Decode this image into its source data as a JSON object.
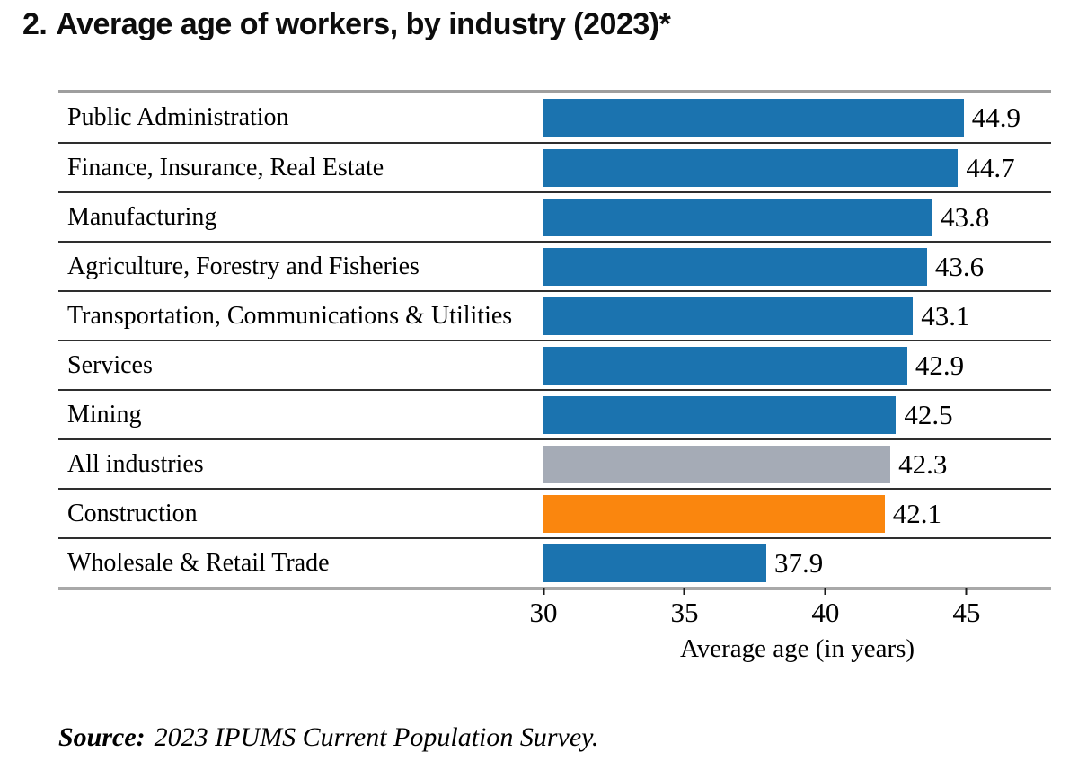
{
  "title": {
    "number": "2.",
    "text": "Average age of workers, by industry (2023)*"
  },
  "chart_data": {
    "type": "bar",
    "orientation": "horizontal",
    "title": "2. Average age of workers, by industry (2023)*",
    "categories": [
      "Public Administration",
      "Finance, Insurance, Real Estate",
      "Manufacturing",
      "Agriculture, Forestry and Fisheries",
      "Transportation, Communications & Utilities",
      "Services",
      "Mining",
      "All industries",
      "Construction",
      "Wholesale & Retail Trade"
    ],
    "values": [
      44.9,
      44.7,
      43.8,
      43.6,
      43.1,
      42.9,
      42.5,
      42.3,
      42.1,
      37.9
    ],
    "value_labels": [
      "44.9",
      "44.7",
      "43.8",
      "43.6",
      "43.1",
      "42.9",
      "42.5",
      "42.3",
      "42.1",
      "37.9"
    ],
    "bar_colors": [
      "#1B73AF",
      "#1B73AF",
      "#1B73AF",
      "#1B73AF",
      "#1B73AF",
      "#1B73AF",
      "#1B73AF",
      "#A5ABB6",
      "#FA860E",
      "#1B73AF"
    ],
    "color_legend": {
      "industry_default": "#1B73AF",
      "all_industries": "#A5ABB6",
      "construction_highlight": "#FA860E"
    },
    "xlabel": "Average age (in years)",
    "xticks": [
      30,
      35,
      40,
      45
    ],
    "xlim": [
      30,
      48
    ],
    "grid": "horizontal row separators only",
    "legend": "none"
  },
  "source": {
    "label": "Source:",
    "text": "2023 IPUMS Current Population Survey."
  }
}
